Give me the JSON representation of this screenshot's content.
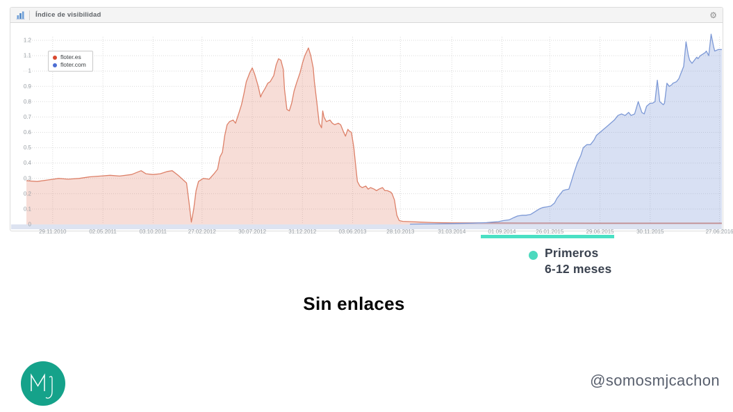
{
  "panel": {
    "title": "Índice de visibilidad",
    "gear_icon": "⚙",
    "chart_icon": "bar-chart-icon"
  },
  "chart_data": {
    "type": "area",
    "title": "Índice de visibilidad",
    "xlabel": "",
    "ylabel": "",
    "grid": true,
    "legend_position": "top-left",
    "ylim": [
      0,
      1.25
    ],
    "yticks": [
      0,
      0.1,
      0.2,
      0.3,
      0.4,
      0.5,
      0.6,
      0.7,
      0.8,
      0.9,
      1,
      1.1,
      1.2
    ],
    "xlim": [
      2010.69,
      2016.51
    ],
    "axis_strip_color": "#dde3f1",
    "grid_color": "#d9d9d9",
    "xticks": [
      {
        "label": "29.11.2010",
        "x": 2010.91
      },
      {
        "label": "02.05.2011",
        "x": 2011.33
      },
      {
        "label": "03.10.2011",
        "x": 2011.75
      },
      {
        "label": "27.02.2012",
        "x": 2012.16
      },
      {
        "label": "30.07.2012",
        "x": 2012.58
      },
      {
        "label": "31.12.2012",
        "x": 2013.0
      },
      {
        "label": "03.06.2013",
        "x": 2013.42
      },
      {
        "label": "28.10.2013",
        "x": 2013.82
      },
      {
        "label": "31.03.2014",
        "x": 2014.25
      },
      {
        "label": "01.09.2014",
        "x": 2014.67
      },
      {
        "label": "26.01.2015",
        "x": 2015.07
      },
      {
        "label": "29.06.2015",
        "x": 2015.49
      },
      {
        "label": "30.11.2015",
        "x": 2015.91
      },
      {
        "label": "27.06.2016",
        "x": 2016.49
      }
    ],
    "series": [
      {
        "name": "floter.es",
        "dot_color": "#d9482f",
        "color": "#dd8068",
        "fill": "rgba(224,130,108,0.27)",
        "points": [
          [
            2010.69,
            0.285
          ],
          [
            2010.78,
            0.28
          ],
          [
            2010.87,
            0.29
          ],
          [
            2010.96,
            0.3
          ],
          [
            2011.04,
            0.295
          ],
          [
            2011.13,
            0.3
          ],
          [
            2011.22,
            0.31
          ],
          [
            2011.31,
            0.315
          ],
          [
            2011.39,
            0.32
          ],
          [
            2011.47,
            0.315
          ],
          [
            2011.57,
            0.325
          ],
          [
            2011.65,
            0.35
          ],
          [
            2011.69,
            0.33
          ],
          [
            2011.75,
            0.325
          ],
          [
            2011.81,
            0.33
          ],
          [
            2011.87,
            0.345
          ],
          [
            2011.91,
            0.35
          ],
          [
            2011.96,
            0.32
          ],
          [
            2012.01,
            0.285
          ],
          [
            2012.03,
            0.27
          ],
          [
            2012.05,
            0.15
          ],
          [
            2012.07,
            0.015
          ],
          [
            2012.09,
            0.1
          ],
          [
            2012.11,
            0.22
          ],
          [
            2012.13,
            0.28
          ],
          [
            2012.17,
            0.3
          ],
          [
            2012.22,
            0.295
          ],
          [
            2012.26,
            0.33
          ],
          [
            2012.29,
            0.36
          ],
          [
            2012.31,
            0.44
          ],
          [
            2012.33,
            0.47
          ],
          [
            2012.35,
            0.58
          ],
          [
            2012.37,
            0.65
          ],
          [
            2012.39,
            0.67
          ],
          [
            2012.42,
            0.68
          ],
          [
            2012.44,
            0.66
          ],
          [
            2012.47,
            0.73
          ],
          [
            2012.49,
            0.78
          ],
          [
            2012.51,
            0.85
          ],
          [
            2012.53,
            0.93
          ],
          [
            2012.56,
            0.99
          ],
          [
            2012.58,
            1.02
          ],
          [
            2012.6,
            0.98
          ],
          [
            2012.63,
            0.9
          ],
          [
            2012.65,
            0.83
          ],
          [
            2012.66,
            0.85
          ],
          [
            2012.69,
            0.89
          ],
          [
            2012.71,
            0.92
          ],
          [
            2012.73,
            0.93
          ],
          [
            2012.76,
            0.97
          ],
          [
            2012.78,
            1.04
          ],
          [
            2012.8,
            1.08
          ],
          [
            2012.82,
            1.07
          ],
          [
            2012.84,
            1.01
          ],
          [
            2012.85,
            0.88
          ],
          [
            2012.87,
            0.75
          ],
          [
            2012.89,
            0.74
          ],
          [
            2012.91,
            0.79
          ],
          [
            2012.93,
            0.87
          ],
          [
            2012.95,
            0.92
          ],
          [
            2012.98,
            0.99
          ],
          [
            2013.0,
            1.05
          ],
          [
            2013.02,
            1.1
          ],
          [
            2013.05,
            1.15
          ],
          [
            2013.07,
            1.1
          ],
          [
            2013.09,
            1.02
          ],
          [
            2013.1,
            0.93
          ],
          [
            2013.12,
            0.8
          ],
          [
            2013.14,
            0.66
          ],
          [
            2013.16,
            0.63
          ],
          [
            2013.17,
            0.74
          ],
          [
            2013.18,
            0.7
          ],
          [
            2013.2,
            0.67
          ],
          [
            2013.23,
            0.68
          ],
          [
            2013.25,
            0.66
          ],
          [
            2013.27,
            0.65
          ],
          [
            2013.3,
            0.66
          ],
          [
            2013.32,
            0.65
          ],
          [
            2013.34,
            0.61
          ],
          [
            2013.36,
            0.575
          ],
          [
            2013.38,
            0.62
          ],
          [
            2013.39,
            0.61
          ],
          [
            2013.41,
            0.6
          ],
          [
            2013.43,
            0.5
          ],
          [
            2013.45,
            0.35
          ],
          [
            2013.46,
            0.28
          ],
          [
            2013.48,
            0.25
          ],
          [
            2013.5,
            0.24
          ],
          [
            2013.53,
            0.25
          ],
          [
            2013.55,
            0.23
          ],
          [
            2013.57,
            0.24
          ],
          [
            2013.6,
            0.23
          ],
          [
            2013.62,
            0.22
          ],
          [
            2013.64,
            0.23
          ],
          [
            2013.67,
            0.24
          ],
          [
            2013.69,
            0.22
          ],
          [
            2013.71,
            0.22
          ],
          [
            2013.74,
            0.21
          ],
          [
            2013.75,
            0.2
          ],
          [
            2013.77,
            0.16
          ],
          [
            2013.79,
            0.06
          ],
          [
            2013.81,
            0.025
          ],
          [
            2013.84,
            0.02
          ],
          [
            2013.9,
            0.018
          ],
          [
            2013.99,
            0.015
          ],
          [
            2014.1,
            0.012
          ],
          [
            2014.25,
            0.01
          ],
          [
            2014.54,
            0.01
          ],
          [
            2014.83,
            0.009
          ],
          [
            2015.12,
            0.009
          ],
          [
            2015.41,
            0.008
          ],
          [
            2015.7,
            0.008
          ],
          [
            2015.99,
            0.008
          ],
          [
            2016.28,
            0.008
          ],
          [
            2016.51,
            0.008
          ]
        ]
      },
      {
        "name": "floter.com",
        "dot_color": "#4d6ed3",
        "color": "#7d99d6",
        "fill": "rgba(125,153,214,0.30)",
        "points": [
          [
            2013.9,
            0.002
          ],
          [
            2014.13,
            0.004
          ],
          [
            2014.28,
            0.006
          ],
          [
            2014.42,
            0.008
          ],
          [
            2014.54,
            0.012
          ],
          [
            2014.59,
            0.015
          ],
          [
            2014.64,
            0.018
          ],
          [
            2014.68,
            0.025
          ],
          [
            2014.73,
            0.03
          ],
          [
            2014.77,
            0.045
          ],
          [
            2014.8,
            0.055
          ],
          [
            2014.84,
            0.06
          ],
          [
            2014.87,
            0.06
          ],
          [
            2014.91,
            0.065
          ],
          [
            2014.94,
            0.08
          ],
          [
            2014.98,
            0.1
          ],
          [
            2015.01,
            0.11
          ],
          [
            2015.05,
            0.115
          ],
          [
            2015.08,
            0.12
          ],
          [
            2015.11,
            0.14
          ],
          [
            2015.13,
            0.17
          ],
          [
            2015.16,
            0.2
          ],
          [
            2015.18,
            0.22
          ],
          [
            2015.2,
            0.225
          ],
          [
            2015.23,
            0.23
          ],
          [
            2015.25,
            0.28
          ],
          [
            2015.27,
            0.33
          ],
          [
            2015.3,
            0.4
          ],
          [
            2015.33,
            0.45
          ],
          [
            2015.35,
            0.5
          ],
          [
            2015.38,
            0.52
          ],
          [
            2015.41,
            0.52
          ],
          [
            2015.44,
            0.55
          ],
          [
            2015.46,
            0.58
          ],
          [
            2015.49,
            0.6
          ],
          [
            2015.52,
            0.62
          ],
          [
            2015.55,
            0.64
          ],
          [
            2015.58,
            0.66
          ],
          [
            2015.61,
            0.68
          ],
          [
            2015.64,
            0.71
          ],
          [
            2015.67,
            0.72
          ],
          [
            2015.7,
            0.71
          ],
          [
            2015.73,
            0.73
          ],
          [
            2015.75,
            0.71
          ],
          [
            2015.78,
            0.72
          ],
          [
            2015.81,
            0.8
          ],
          [
            2015.84,
            0.73
          ],
          [
            2015.86,
            0.72
          ],
          [
            2015.88,
            0.77
          ],
          [
            2015.91,
            0.79
          ],
          [
            2015.93,
            0.79
          ],
          [
            2015.95,
            0.8
          ],
          [
            2015.97,
            0.94
          ],
          [
            2015.99,
            0.8
          ],
          [
            2016.02,
            0.78
          ],
          [
            2016.03,
            0.79
          ],
          [
            2016.05,
            0.92
          ],
          [
            2016.07,
            0.9
          ],
          [
            2016.09,
            0.91
          ],
          [
            2016.1,
            0.92
          ],
          [
            2016.13,
            0.93
          ],
          [
            2016.15,
            0.95
          ],
          [
            2016.17,
            0.99
          ],
          [
            2016.19,
            1.03
          ],
          [
            2016.21,
            1.19
          ],
          [
            2016.23,
            1.1
          ],
          [
            2016.24,
            1.07
          ],
          [
            2016.26,
            1.05
          ],
          [
            2016.28,
            1.07
          ],
          [
            2016.3,
            1.09
          ],
          [
            2016.31,
            1.08
          ],
          [
            2016.33,
            1.1
          ],
          [
            2016.35,
            1.11
          ],
          [
            2016.37,
            1.12
          ],
          [
            2016.38,
            1.13
          ],
          [
            2016.4,
            1.1
          ],
          [
            2016.42,
            1.24
          ],
          [
            2016.44,
            1.16
          ],
          [
            2016.45,
            1.13
          ],
          [
            2016.48,
            1.14
          ],
          [
            2016.51,
            1.14
          ]
        ]
      }
    ]
  },
  "annotation": {
    "bar_color": "#4ae0c4",
    "bullet_color": "#4cd9be",
    "line1": "Primeros",
    "line2": "6-12 meses"
  },
  "caption": "Sin enlaces",
  "footer": {
    "logo_text": "Mj",
    "logo_color": "#15a28a",
    "handle": "@somosmjcachon"
  }
}
